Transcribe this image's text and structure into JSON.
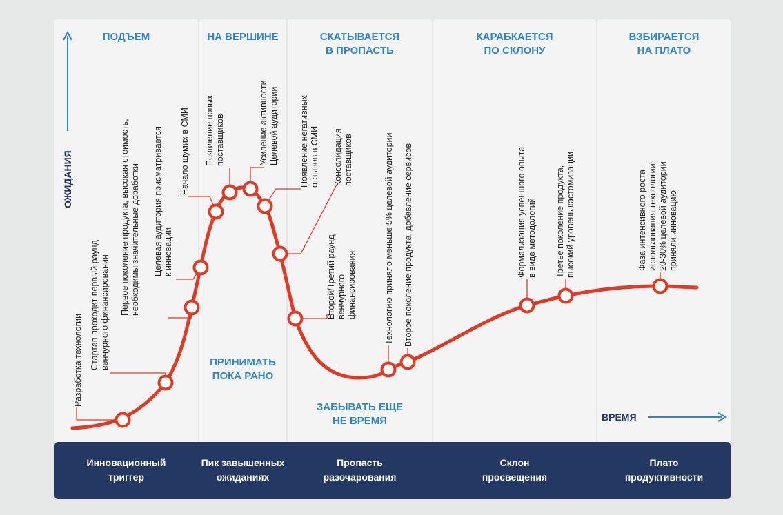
{
  "stage_headers": [
    {
      "id": "rise",
      "lines": [
        "ПОДЪЕМ"
      ]
    },
    {
      "id": "peak",
      "lines": [
        "НА ВЕРШИНЕ"
      ]
    },
    {
      "id": "slide",
      "lines": [
        "СКАТЫВАЕТСЯ",
        "В ПРОПАСТЬ"
      ]
    },
    {
      "id": "climb",
      "lines": [
        "КАРАБКАЕТСЯ",
        "ПО СКЛОНУ"
      ]
    },
    {
      "id": "plateau",
      "lines": [
        "ВЗБИРАЕТСЯ",
        "НА ПЛАТО"
      ]
    }
  ],
  "notes": {
    "too_early": [
      "ПРИНИМАТЬ",
      "ПОКА РАНО"
    ],
    "too_soon_forget": [
      "ЗАБЫВАТЬ ЕЩЕ",
      "НЕ ВРЕМЯ"
    ]
  },
  "axes": {
    "y_label": "ОЖИДАНИЯ",
    "x_label": "ВРЕМЯ"
  },
  "phases": [
    {
      "id": "trigger",
      "lines": [
        "Инновационный",
        "триггер"
      ]
    },
    {
      "id": "peak",
      "lines": [
        "Пик завышенных",
        "ожиданиях"
      ]
    },
    {
      "id": "trough",
      "lines": [
        "Пропасть",
        "разочарования"
      ]
    },
    {
      "id": "slope",
      "lines": [
        "Склон",
        "просвещения"
      ]
    },
    {
      "id": "plateau",
      "lines": [
        "Плато",
        "продуктивности"
      ]
    }
  ],
  "events": [
    {
      "id": "e1",
      "lines": [
        "Разработка технологии"
      ]
    },
    {
      "id": "e2",
      "lines": [
        "Стартап проходит первый раунд",
        "венчурного финансирования"
      ]
    },
    {
      "id": "e3",
      "lines": [
        "Первое поколение продукта, высокая стоимость,",
        "необходимы значительные доработки"
      ]
    },
    {
      "id": "e4",
      "lines": [
        "Целевая аудитория присматривается",
        "к инновации"
      ]
    },
    {
      "id": "e5",
      "lines": [
        "Начало шумих в СМИ"
      ]
    },
    {
      "id": "e6",
      "lines": [
        "Появление новых",
        "поставщиков"
      ]
    },
    {
      "id": "e7",
      "lines": [
        "Усиление активности",
        "Целевой аудитории"
      ]
    },
    {
      "id": "e8",
      "lines": [
        "Появление негативных",
        "отзывов в СМИ"
      ]
    },
    {
      "id": "e9",
      "lines": [
        "Консолидация",
        "поставщиков"
      ]
    },
    {
      "id": "e10",
      "lines": [
        "Второй/Третий раунд",
        "венчурного",
        "финансирования"
      ]
    },
    {
      "id": "e11",
      "lines": [
        "Технологию приняло меньше 5% целевой аудитории"
      ]
    },
    {
      "id": "e12",
      "lines": [
        "Второе поколение продукта, добавление сервисов"
      ]
    },
    {
      "id": "e13",
      "lines": [
        "Формализация успешного опыта",
        "в виде методологий"
      ]
    },
    {
      "id": "e14",
      "lines": [
        "Третье поколение продукта,",
        "высокий уровень кастомизации"
      ]
    },
    {
      "id": "e15",
      "lines": [
        "Фаза интенсивного роста",
        "использования технологии:",
        "20-30% целевой аудитории",
        "приняли инновацию"
      ]
    }
  ],
  "colors": {
    "curve": "#e03a25",
    "header": "#2d87c7",
    "bar": "#233862",
    "panel": "#f4f4f5",
    "background": "#e6e7e7"
  }
}
